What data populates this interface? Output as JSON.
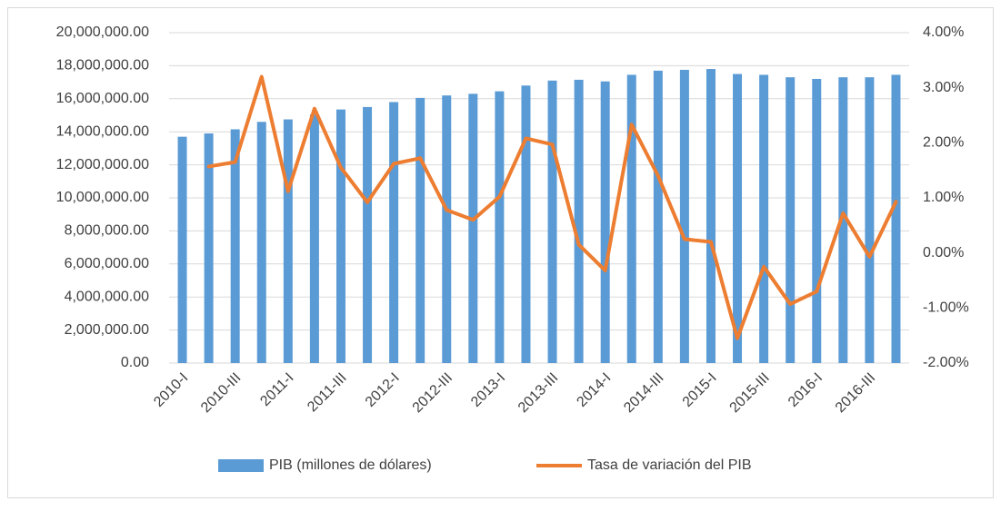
{
  "chart_data": {
    "type": "bar",
    "categories": [
      "2010-I",
      null,
      "2010-III",
      null,
      "2011-I",
      null,
      "2011-III",
      null,
      "2012-I",
      null,
      "2012-III",
      null,
      "2013-I",
      null,
      "2013-III",
      null,
      "2014-I",
      null,
      "2014-III",
      null,
      "2015-I",
      null,
      "2015-III",
      null,
      "2016-I",
      null,
      "2016-III",
      null
    ],
    "series": [
      {
        "name": "PIB (millones de dólares)",
        "type": "bar",
        "color": "#5b9bd5",
        "values": [
          13700000,
          13900000,
          14150000,
          14600000,
          14750000,
          15050000,
          15350000,
          15500000,
          15800000,
          16050000,
          16200000,
          16300000,
          16450000,
          16800000,
          17100000,
          17150000,
          17050000,
          17450000,
          17700000,
          17750000,
          17800000,
          17500000,
          17450000,
          17300000,
          17200000,
          17300000,
          17300000,
          17450000
        ]
      },
      {
        "name": "Tasa de variación del PIB",
        "type": "line",
        "axis": "y2",
        "color": "#ed7d31",
        "values": [
          null,
          1.57,
          1.65,
          3.2,
          1.12,
          2.62,
          1.55,
          0.92,
          1.62,
          1.72,
          0.78,
          0.6,
          1.02,
          2.08,
          1.97,
          0.15,
          -0.32,
          2.33,
          1.4,
          0.25,
          0.2,
          -1.55,
          -0.25,
          -0.93,
          -0.7,
          0.72,
          -0.07,
          0.93
        ]
      }
    ],
    "ylim": [
      0,
      20000000
    ],
    "yticks": [
      {
        "value": 0,
        "label": "0.00"
      },
      {
        "value": 2000000,
        "label": "2,000,000.00"
      },
      {
        "value": 4000000,
        "label": "4,000,000.00"
      },
      {
        "value": 6000000,
        "label": "6,000,000.00"
      },
      {
        "value": 8000000,
        "label": "8,000,000.00"
      },
      {
        "value": 10000000,
        "label": "10,000,000.00"
      },
      {
        "value": 12000000,
        "label": "12,000,000.00"
      },
      {
        "value": 14000000,
        "label": "14,000,000.00"
      },
      {
        "value": 16000000,
        "label": "16,000,000.00"
      },
      {
        "value": 18000000,
        "label": "18,000,000.00"
      },
      {
        "value": 20000000,
        "label": "20,000,000.00"
      }
    ],
    "y2lim": [
      -2,
      4
    ],
    "y2ticks": [
      {
        "value": -2,
        "label": "-2.00%"
      },
      {
        "value": -1,
        "label": "-1.00%"
      },
      {
        "value": 0,
        "label": "0.00%"
      },
      {
        "value": 1,
        "label": "1.00%"
      },
      {
        "value": 2,
        "label": "2.00%"
      },
      {
        "value": 3,
        "label": "3.00%"
      },
      {
        "value": 4,
        "label": "4.00%"
      }
    ],
    "grid": true,
    "legend": "bottom"
  }
}
